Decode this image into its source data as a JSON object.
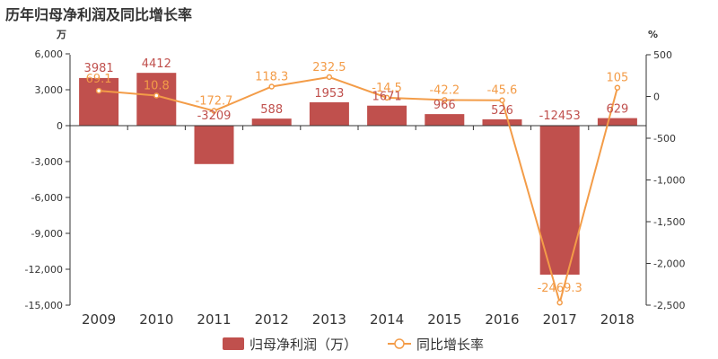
{
  "title": "历年归母净利润及同比增长率",
  "chart_data": {
    "type": "bar",
    "categories": [
      "2009",
      "2010",
      "2011",
      "2012",
      "2013",
      "2014",
      "2015",
      "2016",
      "2017",
      "2018"
    ],
    "series": [
      {
        "name": "归母净利润（万）",
        "type": "bar",
        "axis": "left",
        "values": [
          3981,
          4412,
          -3209,
          588,
          1953,
          1671,
          966,
          526,
          -12453,
          629
        ],
        "labels": [
          "3981",
          "4412",
          "-3209",
          "588",
          "1953",
          "1671",
          "966",
          "526",
          "-12453",
          "629"
        ]
      },
      {
        "name": "同比增长率",
        "type": "line",
        "axis": "right",
        "values": [
          69.1,
          10.8,
          -172.7,
          118.3,
          232.5,
          -14.5,
          -42.2,
          -45.6,
          -2469.3,
          105
        ],
        "labels": [
          "69.1",
          "10.8",
          "-172.7",
          "118.3",
          "232.5",
          "-14.5",
          "-42.2",
          "-45.6",
          "-2469.3",
          "105"
        ]
      }
    ],
    "left_axis": {
      "unit": "万",
      "ylim": [
        -15000,
        6000
      ],
      "ticks": [
        6000,
        3000,
        0,
        -3000,
        -6000,
        -9000,
        -12000,
        -15000
      ],
      "tick_labels": [
        "6,000",
        "3,000",
        "0",
        "-3,000",
        "-6,000",
        "-9,000",
        "-12,000",
        "-15,000"
      ]
    },
    "right_axis": {
      "unit": "%",
      "ylim": [
        -2500,
        500
      ],
      "ticks": [
        500,
        0,
        -500,
        -1000,
        -1500,
        -2000,
        -2500
      ],
      "tick_labels": [
        "500",
        "0",
        "-500",
        "-1,000",
        "-1,500",
        "-2,000",
        "-2,500"
      ]
    },
    "legend": {
      "position": "bottom"
    },
    "grid": false,
    "colors": {
      "bar": "#c0504d",
      "bar_label": "#c0504d",
      "line": "#f39c48",
      "axis": "#333333"
    }
  }
}
